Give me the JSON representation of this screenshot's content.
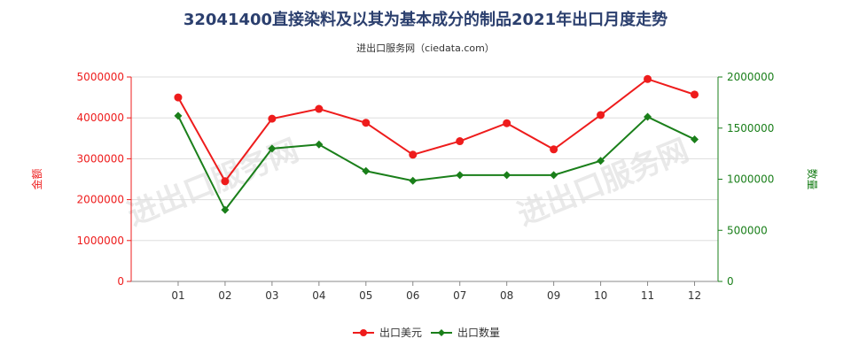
{
  "title": "32041400直接染料及以其为基本成分的制品2021年出口月度走势",
  "subtitle": "进出口服务网（ciedata.com）",
  "watermark": "进出口服务网",
  "colors": {
    "amount": "#ee1c1c",
    "quantity": "#1a7f1a",
    "grid": "#dddddd",
    "axis": "#888888"
  },
  "chart_data": {
    "type": "line",
    "categories": [
      "01",
      "02",
      "03",
      "04",
      "05",
      "06",
      "07",
      "08",
      "09",
      "10",
      "11",
      "12"
    ],
    "y_left": {
      "label": "金额",
      "ylim": [
        0,
        5000000
      ],
      "ticks": [
        "0",
        "1000000",
        "2000000",
        "3000000",
        "4000000",
        "5000000"
      ]
    },
    "y_right": {
      "label": "数量",
      "ylim": [
        0,
        2000000
      ],
      "ticks": [
        "0",
        "500000",
        "1000000",
        "1500000",
        "2000000"
      ]
    },
    "grid": true,
    "legend": "bottom-center",
    "series": [
      {
        "name": "出口美元",
        "axis": "left",
        "marker": "circle",
        "values": [
          4500000,
          2450000,
          3980000,
          4220000,
          3880000,
          3100000,
          3430000,
          3870000,
          3230000,
          4070000,
          4950000,
          4570000
        ]
      },
      {
        "name": "出口数量",
        "axis": "right",
        "marker": "diamond",
        "values": [
          1620000,
          700000,
          1300000,
          1340000,
          1080000,
          985000,
          1040000,
          1040000,
          1040000,
          1180000,
          1610000,
          1390000
        ]
      }
    ]
  }
}
